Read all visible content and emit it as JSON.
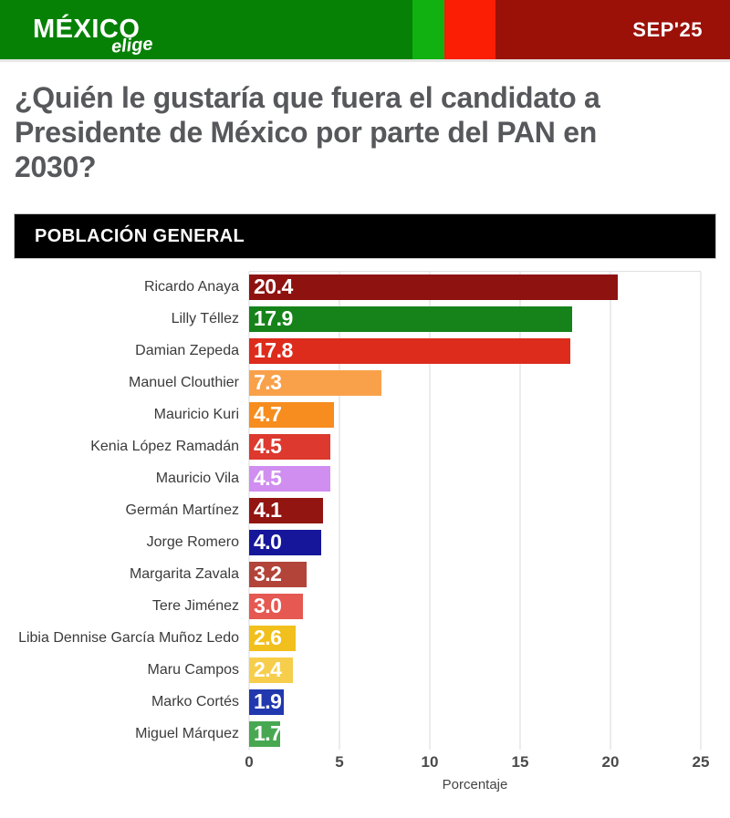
{
  "header": {
    "logo_main": "MÉXICO",
    "logo_sub": "elige",
    "period": "SEP'25",
    "colors": {
      "green": "#068106",
      "bright_green": "#10b110",
      "bright_red": "#fb1e05",
      "dark_red": "#9b1108"
    }
  },
  "question": {
    "full": "¿Quién le gustaría que fuera el candidato a Presidente de México por parte del PAN en 2030?",
    "lines": [
      "¿Quién le gustaría que fuera el candidato a",
      "Presidente de México por parte del PAN en",
      "2030?"
    ]
  },
  "section_banner": "POBLACIÓN GENERAL",
  "chart_data": {
    "type": "bar",
    "orientation": "horizontal",
    "categories": [
      "Ricardo Anaya",
      "Lilly Téllez",
      "Damian Zepeda",
      "Manuel Clouthier",
      "Mauricio Kuri",
      "Kenia López Ramadán",
      "Mauricio Vila",
      "Germán Martínez",
      "Jorge Romero",
      "Margarita Zavala",
      "Tere Jiménez",
      "Libia Dennise García Muñoz Ledo",
      "Maru Campos",
      "Marko Cortés",
      "Miguel Márquez"
    ],
    "values": [
      20.4,
      17.9,
      17.8,
      7.3,
      4.7,
      4.5,
      4.5,
      4.1,
      4.0,
      3.2,
      3.0,
      2.6,
      2.4,
      1.9,
      1.7
    ],
    "bar_colors": [
      "#8e1310",
      "#15831a",
      "#dd2b1c",
      "#f9a14a",
      "#f68d1e",
      "#dd392e",
      "#d08ef0",
      "#931511",
      "#16169b",
      "#b2443a",
      "#e65852",
      "#f2c01c",
      "#f7ce4b",
      "#2138ae",
      "#48a852"
    ],
    "value_label_color": "#ffffff",
    "xlabel": "Porcentaje",
    "xlim": [
      0,
      25
    ],
    "xticks": [
      0,
      5,
      10,
      15,
      20,
      25
    ],
    "grid": true,
    "legend": false,
    "title": "¿Quién le gustaría que fuera el candidato a Presidente de México por parte del PAN en 2030? — Población general"
  }
}
